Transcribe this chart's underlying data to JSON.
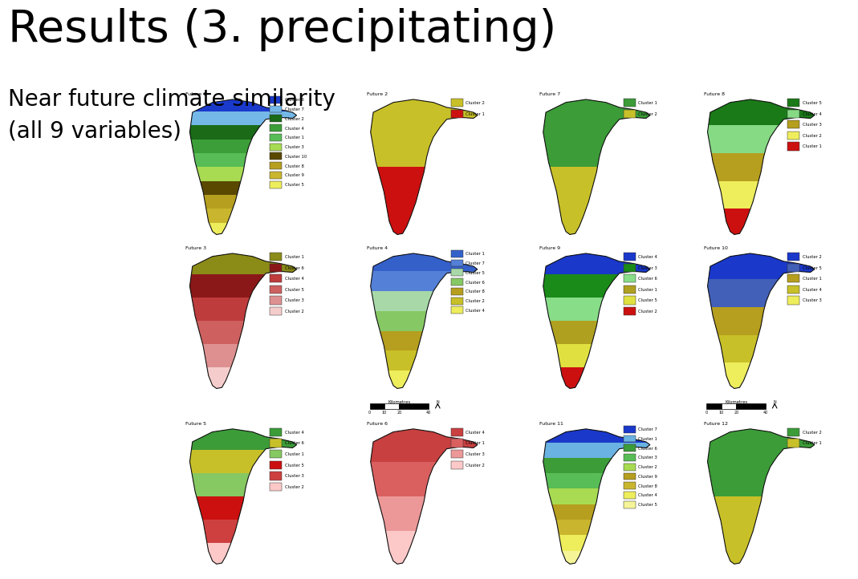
{
  "title": "Results (3. precipitating)",
  "subtitle_line1": "Near future climate similarity",
  "subtitle_line2": "(all 9 variables)",
  "title_fontsize": 40,
  "subtitle_fontsize": 20,
  "background_color": "#ffffff",
  "maps": [
    {
      "label": "Future 1",
      "clusters": [
        "Cluster 6",
        "Cluster 7",
        "Cluster 2",
        "Cluster 4",
        "Cluster 1",
        "Cluster 3",
        "Cluster 10",
        "Cluster 8",
        "Cluster 9",
        "Cluster 5"
      ],
      "colors": [
        "#1a3acc",
        "#74b8e8",
        "#1a6a18",
        "#3c9e38",
        "#58bd56",
        "#a8db52",
        "#5a4800",
        "#b69e1e",
        "#c9b62e",
        "#eeed5c"
      ],
      "dom_color": "#b0b820"
    },
    {
      "label": "Future 2",
      "clusters": [
        "Cluster 2",
        "Cluster 1"
      ],
      "colors": [
        "#c8c028",
        "#cc1010"
      ],
      "dom_color": "#cc1010"
    },
    {
      "label": "Future 7",
      "clusters": [
        "Cluster 1",
        "Cluster 2"
      ],
      "colors": [
        "#3c9c38",
        "#c8c028"
      ],
      "dom_color": "#58bd56"
    },
    {
      "label": "Future 8",
      "clusters": [
        "Cluster 5",
        "Cluster 4",
        "Cluster 3",
        "Cluster 2",
        "Cluster 1"
      ],
      "colors": [
        "#1a7a18",
        "#86da84",
        "#b69e1e",
        "#eeed5c",
        "#cc1010"
      ],
      "dom_color": "#58bd56"
    },
    {
      "label": "Future 3",
      "clusters": [
        "Cluster 1",
        "Cluster 6",
        "Cluster 4",
        "Cluster 5",
        "Cluster 3",
        "Cluster 2"
      ],
      "colors": [
        "#8b8b18",
        "#8b1818",
        "#be3c3c",
        "#ce6060",
        "#de9090",
        "#f5cccc"
      ],
      "dom_color": "#8b1818"
    },
    {
      "label": "Future 4",
      "clusters": [
        "Cluster 1",
        "Cluster 7",
        "Cluster 5",
        "Cluster 6",
        "Cluster 8",
        "Cluster 2",
        "Cluster 4"
      ],
      "colors": [
        "#3460ca",
        "#5480d8",
        "#a8d8a8",
        "#86c864",
        "#b69e1e",
        "#c8c028",
        "#eeed5c"
      ],
      "dom_color": "#a8d8a8"
    },
    {
      "label": "Future 9",
      "clusters": [
        "Cluster 4",
        "Cluster 3",
        "Cluster 6",
        "Cluster 1",
        "Cluster 5",
        "Cluster 2"
      ],
      "colors": [
        "#1a38ca",
        "#1a8a18",
        "#88dd88",
        "#b0a020",
        "#e0e040",
        "#cc1010"
      ],
      "dom_color": "#cc1010"
    },
    {
      "label": "Future 10",
      "clusters": [
        "Cluster 2",
        "Cluster 5",
        "Cluster 1",
        "Cluster 4",
        "Cluster 3"
      ],
      "colors": [
        "#1a38ca",
        "#4260b8",
        "#b69e1e",
        "#c8c028",
        "#eeed5c"
      ],
      "dom_color": "#b8a820"
    },
    {
      "label": "Future 5",
      "clusters": [
        "Cluster 4",
        "Cluster 6",
        "Cluster 1",
        "Cluster 5",
        "Cluster 3",
        "Cluster 2"
      ],
      "colors": [
        "#3c9c38",
        "#c8c028",
        "#86c862",
        "#cc1010",
        "#ce4040",
        "#fcc8c8"
      ],
      "dom_color": "#cc1010"
    },
    {
      "label": "Future 6",
      "clusters": [
        "Cluster 4",
        "Cluster 1",
        "Cluster 3",
        "Cluster 2"
      ],
      "colors": [
        "#c84040",
        "#da6060",
        "#ec9898",
        "#fcc8c8"
      ],
      "dom_color": "#da6060"
    },
    {
      "label": "Future 11",
      "clusters": [
        "Cluster 7",
        "Cluster 1",
        "Cluster 6",
        "Cluster 3",
        "Cluster 2",
        "Cluster 9",
        "Cluster 8",
        "Cluster 4",
        "Cluster 5"
      ],
      "colors": [
        "#1a38ca",
        "#6ab2e2",
        "#3c9c38",
        "#58bd56",
        "#a8db52",
        "#b69e1e",
        "#c9b62e",
        "#eeed5c",
        "#f5f598"
      ],
      "dom_color": "#58bd56"
    },
    {
      "label": "Future 12",
      "clusters": [
        "Cluster 2",
        "Cluster 1"
      ],
      "colors": [
        "#3c9c38",
        "#c8c028"
      ],
      "dom_color": "#b8a820"
    }
  ]
}
